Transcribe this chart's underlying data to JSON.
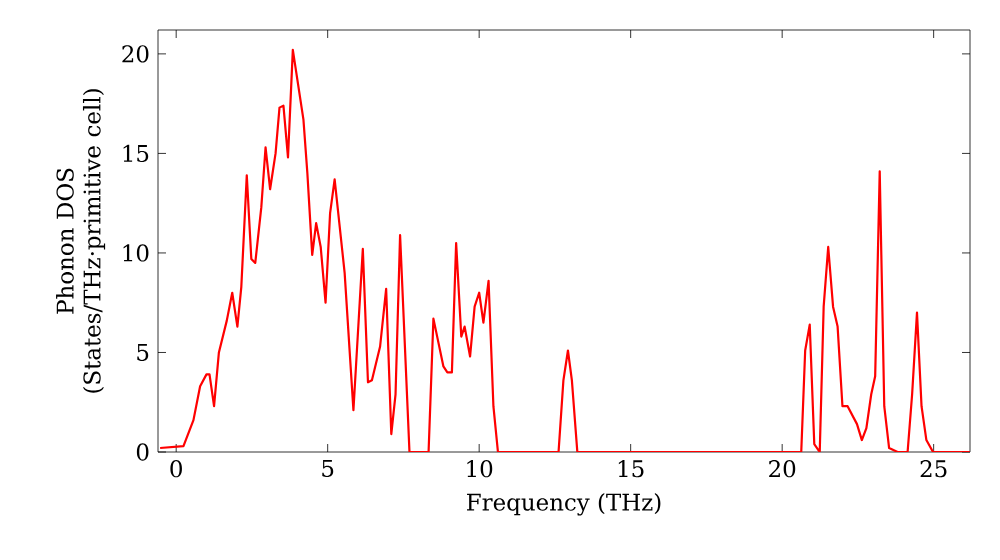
{
  "chart_data": {
    "type": "line",
    "xlabel": "Frequency (THz)",
    "ylabel": "Phonon DOS (States/THz·primitive cell)",
    "xlim": [
      -0.6,
      26.2
    ],
    "ylim": [
      0,
      21.2
    ],
    "xticks": [
      0,
      5,
      10,
      15,
      20,
      25
    ],
    "yticks": [
      0,
      5,
      10,
      15,
      20
    ],
    "marker": "none",
    "line_style": "solid",
    "series": [
      {
        "color": "#ff0000",
        "x": [
          -0.53,
          0.24,
          0.57,
          0.79,
          1.0,
          1.1,
          1.25,
          1.41,
          1.67,
          1.85,
          2.02,
          2.15,
          2.33,
          2.48,
          2.61,
          2.81,
          2.95,
          3.1,
          3.28,
          3.41,
          3.54,
          3.69,
          3.85,
          4.2,
          4.33,
          4.49,
          4.62,
          4.77,
          4.93,
          5.08,
          5.23,
          5.56,
          5.85,
          6.16,
          6.33,
          6.46,
          6.73,
          6.93,
          7.1,
          7.24,
          7.39,
          7.7,
          8.33,
          8.49,
          8.82,
          8.95,
          9.1,
          9.24,
          9.41,
          9.52,
          9.7,
          9.85,
          10.0,
          10.14,
          10.31,
          10.47,
          10.62,
          12.62,
          12.78,
          12.93,
          13.06,
          13.24,
          20.63,
          20.76,
          20.91,
          21.06,
          21.24,
          21.37,
          21.52,
          21.68,
          21.83,
          21.99,
          22.16,
          22.47,
          22.63,
          22.78,
          22.94,
          23.07,
          23.22,
          23.37,
          23.53,
          23.81,
          24.14,
          24.29,
          24.45,
          24.6,
          24.76,
          24.98,
          26.19
        ],
        "values": [
          0.2,
          0.3,
          1.6,
          3.3,
          3.9,
          3.9,
          2.3,
          5.0,
          6.6,
          8.0,
          6.3,
          8.3,
          13.9,
          9.7,
          9.5,
          12.3,
          15.3,
          13.2,
          15.0,
          17.3,
          17.4,
          14.8,
          20.2,
          16.7,
          14.0,
          9.9,
          11.5,
          10.3,
          7.5,
          12.0,
          13.7,
          9.0,
          2.1,
          10.2,
          3.5,
          3.6,
          5.3,
          8.2,
          0.9,
          2.9,
          10.9,
          0,
          0,
          6.7,
          4.3,
          4.0,
          4.0,
          10.5,
          5.8,
          6.3,
          4.8,
          7.3,
          8.0,
          6.5,
          8.6,
          2.3,
          0,
          0,
          3.6,
          5.1,
          3.6,
          0,
          0,
          5.1,
          6.4,
          0.4,
          0,
          7.3,
          10.3,
          7.3,
          6.3,
          2.3,
          2.3,
          1.4,
          0.6,
          1.2,
          2.9,
          3.8,
          14.1,
          2.3,
          0.2,
          0,
          0,
          2.9,
          7.0,
          2.3,
          0.6,
          0,
          0
        ]
      }
    ]
  }
}
